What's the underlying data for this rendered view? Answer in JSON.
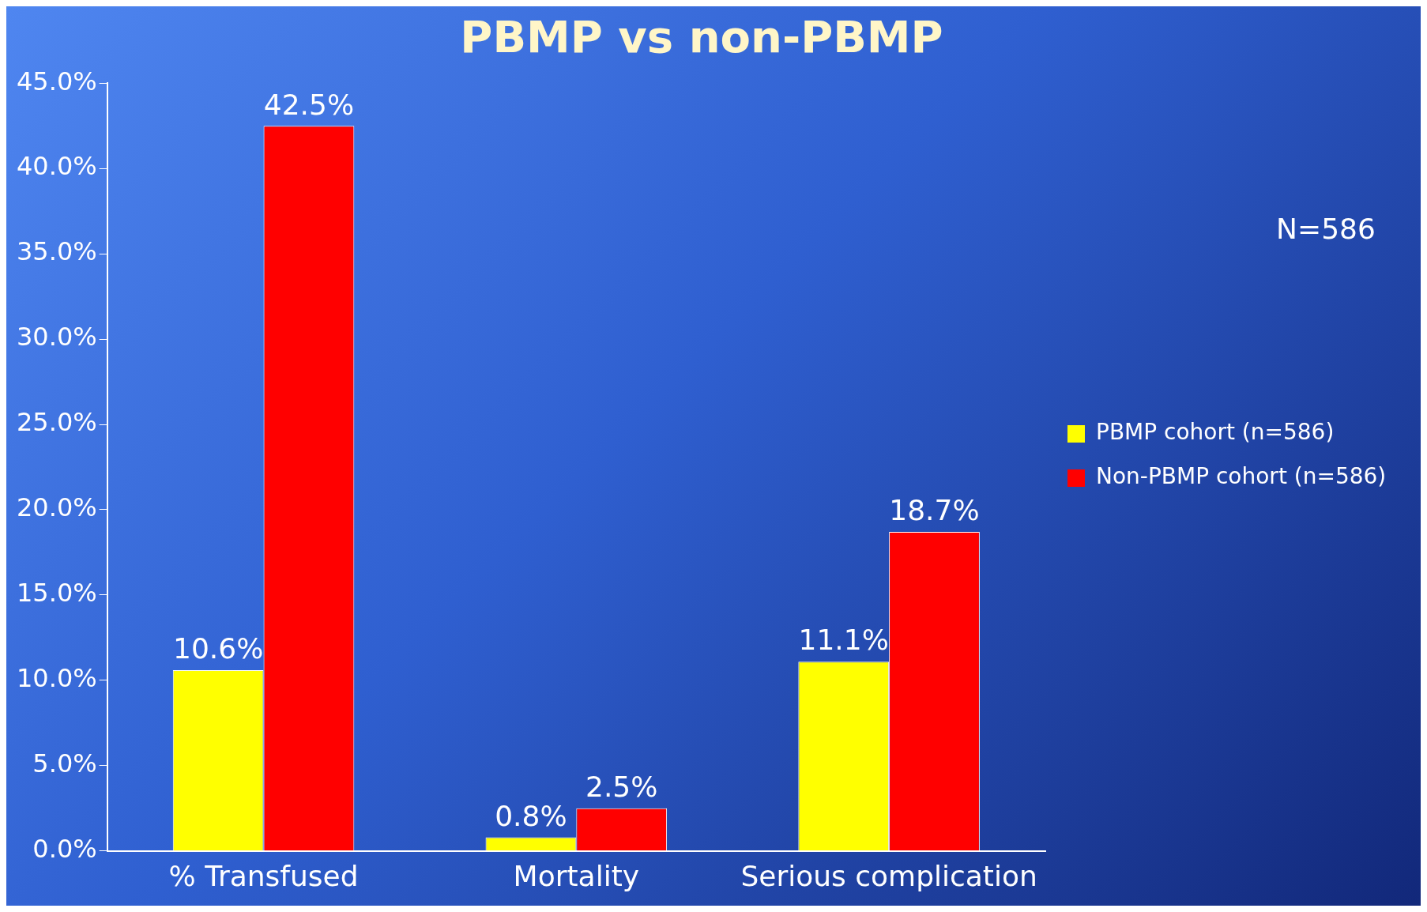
{
  "chart_data": {
    "type": "bar",
    "title": "PBMP vs non-PBMP",
    "categories": [
      "% Transfused",
      "Mortality",
      "Serious complication"
    ],
    "series": [
      {
        "name": "PBMP cohort (n=586)",
        "color": "#ffff00",
        "values": [
          10.6,
          0.8,
          11.1
        ],
        "value_labels": [
          "10.6%",
          "0.8%",
          "11.1%"
        ]
      },
      {
        "name": "Non-PBMP cohort (n=586)",
        "color": "#ff0000",
        "values": [
          42.5,
          2.5,
          18.7
        ],
        "value_labels": [
          "42.5%",
          "2.5%",
          "18.7%"
        ]
      }
    ],
    "ylim": [
      0,
      45
    ],
    "yticks": [
      {
        "value": 0,
        "label": "0.0%"
      },
      {
        "value": 5,
        "label": "5.0%"
      },
      {
        "value": 10,
        "label": "10.0%"
      },
      {
        "value": 15,
        "label": "15.0%"
      },
      {
        "value": 20,
        "label": "20.0%"
      },
      {
        "value": 25,
        "label": "25.0%"
      },
      {
        "value": 30,
        "label": "30.0%"
      },
      {
        "value": 35,
        "label": "35.0%"
      },
      {
        "value": 40,
        "label": "40.0%"
      },
      {
        "value": 45,
        "label": "45.0%"
      }
    ],
    "grid": false,
    "legend": "right",
    "annotations": [
      "N=586"
    ]
  }
}
